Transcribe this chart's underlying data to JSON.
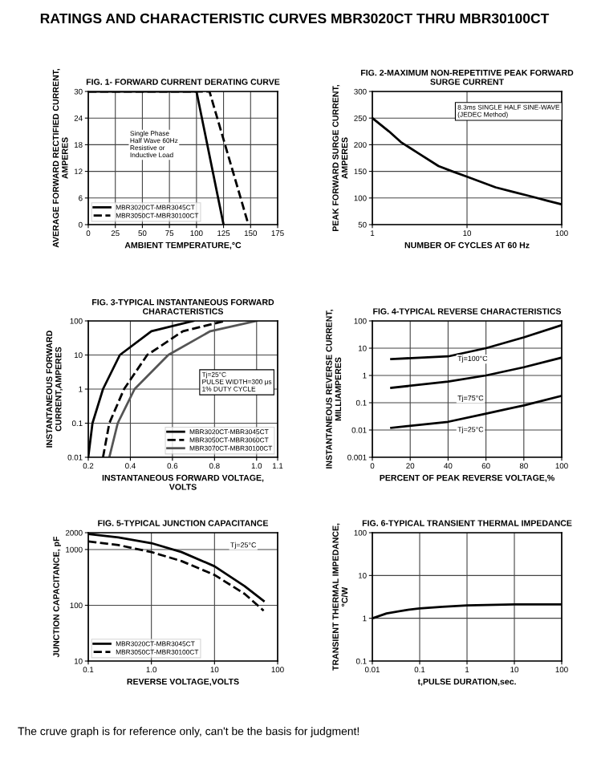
{
  "chart_data": [
    {
      "type": "line",
      "title": "FIG. 1- FORWARD CURRENT DERATING CURVE",
      "xlabel": "AMBIENT TEMPERATURE,°C",
      "ylabel": "AVERAGE FORWARD RECTIFIED CURRENT,\nAMPERES",
      "xlim": [
        0,
        175
      ],
      "ylim": [
        0,
        30
      ],
      "xticks": [
        0,
        25,
        50,
        75,
        100,
        125,
        150,
        175
      ],
      "yticks": [
        0,
        6,
        12,
        18,
        24,
        30
      ],
      "grid": true,
      "legend": "bottom left",
      "annotations": [
        "RATINGS AND CHARACTERISTIC CURVES MBR3020CT THRU MBR30100CT",
        "Single Phase\nHalf Wave 60Hz\nResistive or\nInductive Load"
      ],
      "series": [
        {
          "name": "MBR3020CT-MBR3045CT",
          "color": "#000000",
          "line_style": "solid",
          "x": [
            0,
            100,
            125
          ],
          "values": [
            30,
            30,
            0
          ]
        },
        {
          "name": "MBR3050CT-MBR30100CT",
          "color": "#000000",
          "line_style": "dashed",
          "x": [
            0,
            112,
            148
          ],
          "values": [
            30,
            30,
            0
          ]
        }
      ]
    },
    {
      "type": "line",
      "title": "FIG. 2-MAXIMUM NON-REPETITIVE PEAK FORWARD\nSURGE CURRENT",
      "xlabel": "NUMBER OF CYCLES AT 60 Hz",
      "ylabel": "PEAK FORWARD SURGE CURRENT,\nAMPERES",
      "log": "x",
      "xlim": [
        1,
        100
      ],
      "ylim": [
        50,
        300
      ],
      "xticks": [
        1,
        10,
        100
      ],
      "yticks": [
        50,
        100,
        150,
        200,
        250,
        300
      ],
      "grid": true,
      "annotations": [
        "8.3ms SINGLE HALF SINE-WAVE\n(JEDEC Method)"
      ],
      "series": [
        {
          "color": "#000000",
          "line_style": "solid",
          "x": [
            1,
            1.5,
            2,
            3,
            5,
            7,
            10,
            20,
            30,
            50,
            70,
            100
          ],
          "values": [
            250,
            225,
            205,
            185,
            160,
            150,
            140,
            120,
            112,
            102,
            95,
            88
          ]
        }
      ]
    },
    {
      "type": "line",
      "title": "FIG. 3-TYPICAL INSTANTANEOUS FORWARD\nCHARACTERISTICS",
      "xlabel": "INSTANTANEOUS FORWARD VOLTAGE,\nVOLTS",
      "ylabel": "INSTANTANEOUS FORWARD\nCURRENT,AMPERES",
      "log": "y",
      "xlim": [
        0.2,
        1.1
      ],
      "ylim": [
        0.01,
        100
      ],
      "xticks": [
        0.2,
        0.4,
        0.6,
        0.8,
        {
          "value": 1,
          "label": "1.0"
        },
        1.1
      ],
      "yticks": [
        0.01,
        0.1,
        1,
        10,
        100
      ],
      "grid": true,
      "legend": "bottom right",
      "annotations": [
        "Tj=25°C\nPULSE WIDTH=300 μs\n1% DUTY CYCLE"
      ],
      "series": [
        {
          "name": "MBR3020CT-MBR3045CT",
          "color": "#000000",
          "line_style": "solid",
          "x": [
            0.2,
            0.22,
            0.27,
            0.35,
            0.5,
            0.7
          ],
          "values": [
            0.01,
            0.1,
            1,
            10,
            50,
            100
          ]
        },
        {
          "name": "MBR3050CT-MBR3060CT",
          "color": "#000000",
          "line_style": "dashed",
          "x": [
            0.27,
            0.3,
            0.37,
            0.48,
            0.65,
            0.85
          ],
          "values": [
            0.01,
            0.1,
            1,
            10,
            50,
            100
          ]
        },
        {
          "name": "MBR3070CT-MBR30100CT",
          "color": "#555555",
          "line_style": "solid",
          "x": [
            0.3,
            0.34,
            0.42,
            0.58,
            0.78,
            1.0
          ],
          "values": [
            0.01,
            0.1,
            1,
            10,
            50,
            100
          ]
        }
      ]
    },
    {
      "type": "line",
      "title": "FIG. 4-TYPICAL REVERSE CHARACTERISTICS",
      "xlabel": "PERCENT OF PEAK REVERSE VOLTAGE,%",
      "ylabel": "INSTANTANEOUS REVERSE CURRENT,\nMILLIAMPERES",
      "log": "y",
      "xlim": [
        0,
        100
      ],
      "ylim": [
        0.001,
        100
      ],
      "xticks": [
        0,
        20,
        40,
        60,
        80,
        100
      ],
      "yticks": [
        0.001,
        0.01,
        0.1,
        1,
        10,
        100
      ],
      "grid": true,
      "annotations": [
        "Tj=100°C",
        "Tj=75°C",
        "Tj=25°C"
      ],
      "series": [
        {
          "color": "#000000",
          "line_style": "solid",
          "x": [
            10,
            40,
            60,
            80,
            100
          ],
          "values": [
            4,
            5,
            10,
            25,
            70
          ]
        },
        {
          "color": "#000000",
          "line_style": "solid",
          "x": [
            10,
            40,
            60,
            80,
            100
          ],
          "values": [
            0.35,
            0.6,
            1,
            2,
            4.5
          ]
        },
        {
          "color": "#000000",
          "line_style": "solid",
          "x": [
            10,
            40,
            60,
            80,
            100
          ],
          "values": [
            0.012,
            0.02,
            0.04,
            0.08,
            0.18
          ]
        }
      ]
    },
    {
      "type": "line",
      "title": "FIG. 5-TYPICAL JUNCTION CAPACITANCE",
      "xlabel": "REVERSE VOLTAGE,VOLTS",
      "ylabel": "JUNCTION CAPACITANCE, pF",
      "log": "xy",
      "xlim": [
        0.1,
        100
      ],
      "ylim": [
        10,
        2000
      ],
      "xticks": [
        0.1,
        {
          "value": 1,
          "label": "1.0"
        },
        10,
        100
      ],
      "yticks": [
        10,
        100,
        1000,
        2000
      ],
      "grid": true,
      "legend": "bottom left",
      "annotations": [
        "Tj=25°C"
      ],
      "series": [
        {
          "name": "MBR3020CT-MBR3045CT",
          "color": "#000000",
          "line_style": "solid",
          "x": [
            0.1,
            0.3,
            1,
            3,
            10,
            30,
            60
          ],
          "values": [
            1900,
            1650,
            1300,
            900,
            500,
            220,
            120
          ]
        },
        {
          "name": "MBR3050CT-MBR30100CT",
          "color": "#000000",
          "line_style": "dashed",
          "x": [
            0.1,
            0.3,
            1,
            3,
            10,
            30,
            60
          ],
          "values": [
            1400,
            1200,
            900,
            620,
            350,
            160,
            80
          ]
        }
      ]
    },
    {
      "type": "line",
      "title": "FIG. 6-TYPICAL TRANSIENT THERMAL IMPEDANCE",
      "xlabel": "t,PULSE DURATION,sec.",
      "ylabel": "TRANSIENT THERMAL IMPEDANCE,\n°C/W",
      "log": "xy",
      "xlim": [
        0.01,
        100
      ],
      "ylim": [
        0.1,
        100
      ],
      "xticks": [
        0.01,
        0.1,
        1,
        10,
        100
      ],
      "yticks": [
        0.1,
        1,
        10,
        100
      ],
      "grid": true,
      "annotations": [
        "The cruve graph is for reference only, can't be the basis for judgment!"
      ],
      "series": [
        {
          "color": "#000000",
          "line_style": "solid",
          "x": [
            0.01,
            0.02,
            0.05,
            0.1,
            0.3,
            1,
            10,
            100
          ],
          "values": [
            1.0,
            1.3,
            1.55,
            1.7,
            1.85,
            2.0,
            2.1,
            2.1
          ]
        }
      ]
    }
  ]
}
